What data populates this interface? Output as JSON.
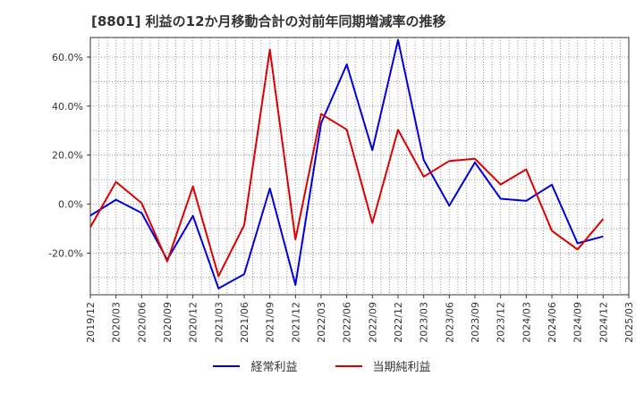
{
  "chart_data": {
    "type": "line",
    "title": "[8801]  利益の12か月移動合計の対前年同期増減率の推移",
    "categories": [
      "2019/12",
      "2020/03",
      "2020/06",
      "2020/09",
      "2020/12",
      "2021/03",
      "2021/06",
      "2021/09",
      "2021/12",
      "2022/03",
      "2022/06",
      "2022/09",
      "2022/12",
      "2023/03",
      "2023/06",
      "2023/09",
      "2023/12",
      "2024/03",
      "2024/06",
      "2024/09",
      "2024/12",
      "2025/03"
    ],
    "y_ticks": [
      60,
      40,
      20,
      0,
      -20
    ],
    "y_tick_labels": [
      "60.0%",
      "40.0%",
      "20.0%",
      "0.0%",
      "-20.0%"
    ],
    "ylim": [
      -37,
      68
    ],
    "grid": true,
    "legend_position": "bottom",
    "series": [
      {
        "name": "経常利益",
        "color": "#0000dd",
        "values": [
          -4.7,
          1.8,
          -3.6,
          -22.7,
          -4.8,
          -34.4,
          -28.6,
          6.4,
          -33.0,
          33.0,
          57.0,
          22.0,
          67.0,
          18.0,
          -0.6,
          17.0,
          2.2,
          1.3,
          7.9,
          -16.0,
          -13.2,
          null
        ]
      },
      {
        "name": "当期純利益",
        "color": "#dd0000",
        "values": [
          -9.4,
          9.1,
          0.4,
          -23.4,
          7.2,
          -29.4,
          -8.6,
          63.0,
          -14.4,
          36.8,
          30.4,
          -7.7,
          30.3,
          11.2,
          17.6,
          18.5,
          8.0,
          14.2,
          -10.9,
          -18.5,
          -6.1,
          null
        ]
      }
    ]
  }
}
